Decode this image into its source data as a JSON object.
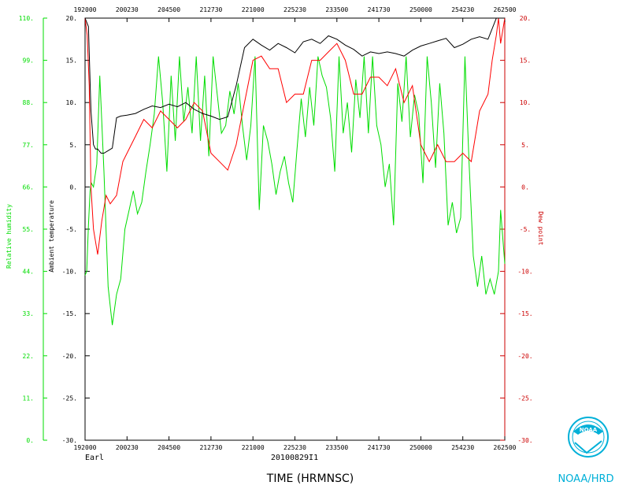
{
  "colors": {
    "temperature": "#000000",
    "dewpoint": "#ff0000",
    "humidity": "#00dd00",
    "axis": "#000000",
    "logo": "#00b0d8"
  },
  "icons": {
    "logo": "noaa-logo-icon"
  },
  "chart_data": {
    "type": "line",
    "title": "",
    "xlabel": "TIME (HRMNSC)",
    "storm_label": "Earl",
    "date_label": "20100829I1",
    "credit": "NOAA/HRD",
    "grid": false,
    "x_tick_labels": [
      "192000",
      "200230",
      "204500",
      "212730",
      "221000",
      "225230",
      "233500",
      "241730",
      "250000",
      "254230",
      "262500"
    ],
    "y_left_inner": {
      "label": "Ambient temperature",
      "ylim": [
        -30,
        20
      ],
      "ticks": [
        "20.",
        "15.",
        "10.",
        "5.",
        "0.",
        "-5.",
        "-10.",
        "-15.",
        "-20.",
        "-25.",
        "-30."
      ]
    },
    "y_left_outer": {
      "label": "Relative humidity",
      "ylim": [
        0,
        110
      ],
      "ticks": [
        "110.",
        "99.",
        "88.",
        "77.",
        "66.",
        "55.",
        "44.",
        "33.",
        "22.",
        "11.",
        "0."
      ]
    },
    "y_right": {
      "label": "Dew point",
      "ylim": [
        -30,
        20
      ],
      "ticks": [
        "20.",
        "15.",
        "10.",
        "5.",
        "0.",
        "-5.",
        "-10.",
        "-15.",
        "-20.",
        "-25.",
        "-30."
      ]
    },
    "x_range_index": [
      0,
      10
    ],
    "series": [
      {
        "key": "temperature",
        "axis": "temp",
        "x": [
          0.0,
          0.08,
          0.14,
          0.2,
          0.25,
          0.3,
          0.38,
          0.45,
          0.55,
          0.65,
          0.75,
          0.85,
          1.0,
          1.2,
          1.4,
          1.6,
          1.8,
          2.0,
          2.2,
          2.4,
          2.6,
          2.8,
          3.0,
          3.2,
          3.4,
          3.6,
          3.8,
          4.0,
          4.2,
          4.4,
          4.6,
          4.8,
          5.0,
          5.2,
          5.4,
          5.6,
          5.8,
          6.0,
          6.2,
          6.4,
          6.6,
          6.8,
          7.0,
          7.2,
          7.4,
          7.6,
          7.8,
          8.0,
          8.2,
          8.4,
          8.6,
          8.8,
          9.0,
          9.2,
          9.4,
          9.6,
          9.8,
          9.9,
          9.95,
          10.0
        ],
        "values": [
          20,
          19,
          9,
          5,
          4.5,
          4.5,
          4.0,
          4.0,
          4.3,
          4.6,
          8.2,
          8.4,
          8.5,
          8.7,
          9.2,
          9.6,
          9.4,
          9.8,
          9.5,
          10.0,
          9.2,
          8.7,
          8.4,
          8.0,
          8.3,
          12.0,
          16.5,
          17.5,
          16.8,
          16.2,
          17.0,
          16.5,
          15.9,
          17.2,
          17.5,
          17.0,
          17.9,
          17.5,
          16.8,
          16.3,
          15.5,
          16.0,
          15.8,
          16.0,
          15.8,
          15.5,
          16.2,
          16.7,
          17.0,
          17.3,
          17.6,
          16.5,
          16.9,
          17.5,
          17.8,
          17.5,
          20,
          20,
          20,
          20
        ]
      },
      {
        "key": "dewpoint",
        "axis": "temp",
        "x": [
          0.0,
          0.05,
          0.1,
          0.14,
          0.2,
          0.3,
          0.4,
          0.5,
          0.6,
          0.75,
          0.9,
          1.0,
          1.2,
          1.4,
          1.6,
          1.8,
          2.0,
          2.2,
          2.4,
          2.6,
          2.8,
          3.0,
          3.2,
          3.4,
          3.6,
          3.8,
          4.0,
          4.2,
          4.4,
          4.6,
          4.8,
          5.0,
          5.2,
          5.4,
          5.6,
          5.8,
          6.0,
          6.2,
          6.4,
          6.6,
          6.8,
          7.0,
          7.2,
          7.4,
          7.6,
          7.8,
          8.0,
          8.2,
          8.4,
          8.6,
          8.8,
          9.0,
          9.2,
          9.4,
          9.6,
          9.7,
          9.8,
          9.85,
          9.9,
          10.0
        ],
        "values": [
          20,
          18,
          12,
          0,
          -5,
          -8,
          -4,
          -1,
          -2,
          -1,
          3,
          4,
          6,
          8,
          7,
          9,
          8,
          7,
          8,
          10,
          9,
          4,
          3,
          2,
          5,
          10,
          15,
          15.5,
          14,
          14,
          10,
          11,
          11,
          15,
          15,
          16,
          17,
          15,
          11,
          11,
          13,
          13,
          12,
          14,
          10,
          12,
          5,
          3,
          5,
          3,
          3,
          4,
          3,
          9,
          11,
          15,
          18,
          20,
          17,
          20
        ]
      },
      {
        "key": "humidity",
        "axis": "rh",
        "x": [
          0.0,
          0.04,
          0.08,
          0.12,
          0.15,
          0.2,
          0.28,
          0.35,
          0.45,
          0.55,
          0.65,
          0.75,
          0.85,
          0.95,
          1.05,
          1.15,
          1.25,
          1.35,
          1.45,
          1.55,
          1.65,
          1.75,
          1.85,
          1.95,
          2.05,
          2.15,
          2.25,
          2.35,
          2.45,
          2.55,
          2.65,
          2.75,
          2.85,
          2.95,
          3.05,
          3.15,
          3.25,
          3.35,
          3.45,
          3.55,
          3.65,
          3.75,
          3.85,
          3.95,
          4.05,
          4.15,
          4.25,
          4.35,
          4.45,
          4.55,
          4.65,
          4.75,
          4.85,
          4.95,
          5.05,
          5.15,
          5.25,
          5.35,
          5.45,
          5.55,
          5.65,
          5.75,
          5.85,
          5.95,
          6.05,
          6.15,
          6.25,
          6.35,
          6.45,
          6.55,
          6.65,
          6.75,
          6.85,
          6.95,
          7.05,
          7.15,
          7.25,
          7.35,
          7.45,
          7.55,
          7.65,
          7.75,
          7.85,
          7.95,
          8.05,
          8.15,
          8.25,
          8.35,
          8.45,
          8.55,
          8.65,
          8.75,
          8.85,
          8.95,
          9.05,
          9.15,
          9.25,
          9.35,
          9.45,
          9.55,
          9.65,
          9.75,
          9.85,
          9.9,
          10.0
        ],
        "values": [
          43,
          44,
          56,
          65,
          67,
          66,
          72,
          95,
          70,
          40,
          30,
          38,
          42,
          55,
          60,
          65,
          59,
          62,
          70,
          77,
          85,
          100,
          88,
          70,
          95,
          78,
          100,
          83,
          92,
          80,
          100,
          78,
          95,
          74,
          100,
          90,
          80,
          82,
          91,
          85,
          93,
          82,
          73,
          82,
          100,
          60,
          82,
          78,
          72,
          64,
          70,
          74,
          67,
          62,
          76,
          89,
          79,
          92,
          82,
          100,
          95,
          92,
          84,
          70,
          100,
          80,
          88,
          75,
          94,
          84,
          100,
          80,
          100,
          82,
          77,
          66,
          72,
          56,
          93,
          83,
          100,
          79,
          90,
          85,
          67,
          100,
          88,
          71,
          93,
          80,
          56,
          62,
          54,
          58,
          100,
          72,
          48,
          40,
          48,
          38,
          42,
          38,
          44,
          60,
          46
        ]
      }
    ]
  }
}
